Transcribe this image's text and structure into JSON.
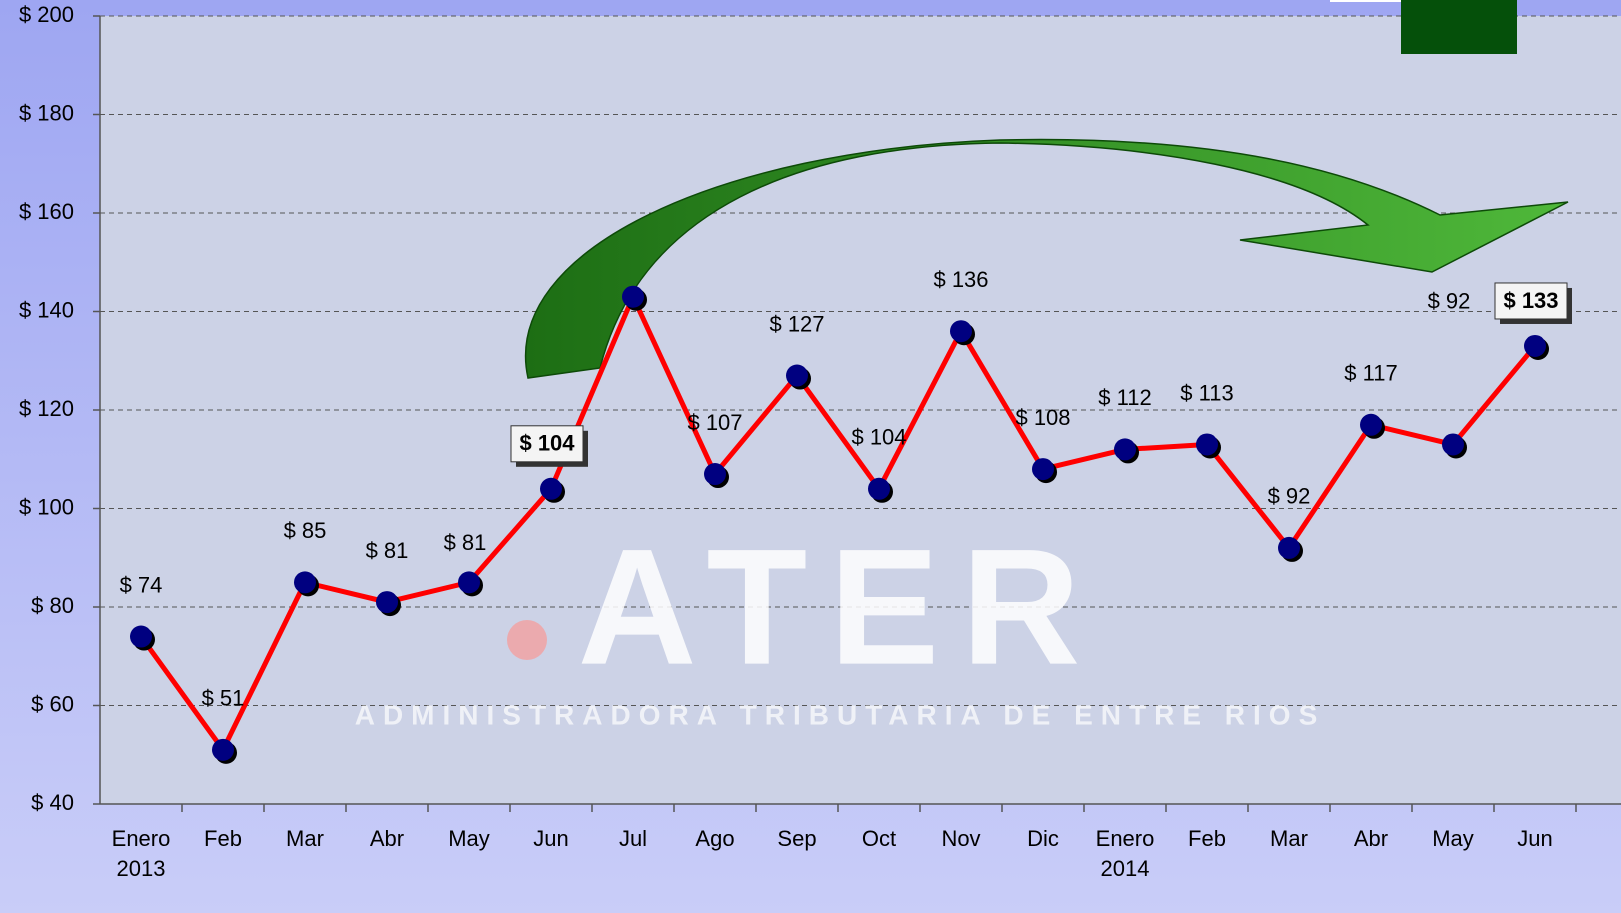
{
  "chart_data": {
    "type": "line",
    "categories": [
      "Enero 2013",
      "Feb",
      "Mar",
      "Abr",
      "May",
      "Jun",
      "Jul",
      "Ago",
      "Sep",
      "Oct",
      "Nov",
      "Dic",
      "Enero 2014",
      "Feb",
      "Mar",
      "Abr",
      "May",
      "Jun"
    ],
    "values": [
      74,
      51,
      85,
      81,
      85,
      104,
      143,
      107,
      127,
      104,
      136,
      108,
      112,
      113,
      92,
      117,
      113,
      133
    ],
    "value_labels": [
      "$ 74",
      "$ 51",
      "$ 85",
      "$ 81",
      null,
      "$ 104",
      null,
      "$ 107",
      "$ 127",
      "$ 104",
      "$ 136",
      "$ 108",
      "$ 112",
      "$ 113",
      "$ 92",
      "$ 117",
      null,
      "$ 133"
    ],
    "annotations": [
      "$ 81",
      "$ 92"
    ],
    "highlighted": [
      5,
      17
    ],
    "color": "#ff0000",
    "marker_color": "#000080",
    "ylim": [
      40,
      200
    ],
    "yticks": [
      {
        "value": 40,
        "label": "$ 40"
      },
      {
        "value": 60,
        "label": "$ 60"
      },
      {
        "value": 80,
        "label": "$ 80"
      },
      {
        "value": 100,
        "label": "$ 100"
      },
      {
        "value": 120,
        "label": "$ 120"
      },
      {
        "value": 140,
        "label": "$ 140"
      },
      {
        "value": 160,
        "label": "$ 160"
      },
      {
        "value": 180,
        "label": "$ 180"
      },
      {
        "value": 200,
        "label": "$ 200"
      }
    ],
    "grid": true,
    "watermark": {
      "title": "ATER",
      "subtitle": "ADMINISTRADORA TRIBUTARIA DE ENTRE RIOS"
    }
  }
}
